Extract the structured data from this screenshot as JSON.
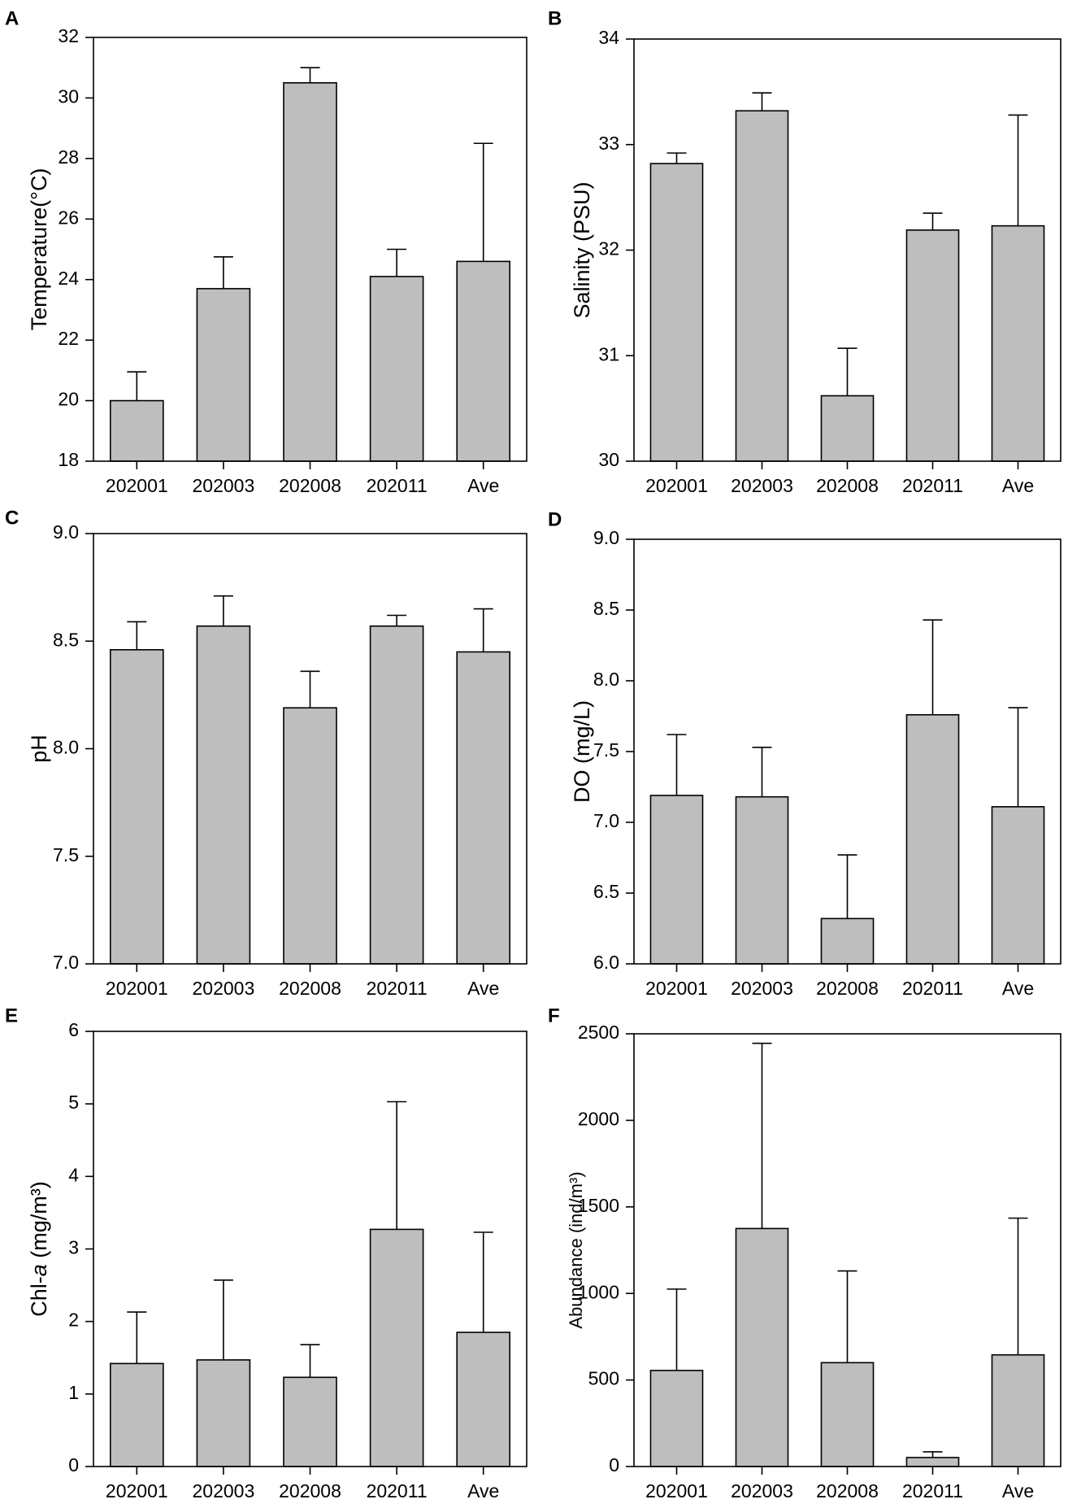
{
  "chart_data": [
    {
      "panel": "A",
      "type": "bar",
      "categories": [
        "202001",
        "202003",
        "202008",
        "202011",
        "Ave"
      ],
      "values": [
        20.0,
        23.7,
        30.5,
        24.1,
        24.6
      ],
      "errors": [
        0.95,
        1.05,
        0.5,
        0.9,
        3.9
      ],
      "ylabel": "Temperature(°C)",
      "ylim": [
        18,
        32
      ],
      "yticks": [
        "18",
        "20",
        "22",
        "24",
        "26",
        "28",
        "30",
        "32"
      ],
      "ytick_values": [
        18,
        20,
        22,
        24,
        26,
        28,
        30,
        32
      ]
    },
    {
      "panel": "B",
      "type": "bar",
      "categories": [
        "202001",
        "202003",
        "202008",
        "202011",
        "Ave"
      ],
      "values": [
        32.82,
        33.32,
        30.62,
        32.19,
        32.23
      ],
      "errors": [
        0.1,
        0.17,
        0.45,
        0.16,
        1.05
      ],
      "ylabel": "Salinity (PSU)",
      "ylim": [
        30,
        34
      ],
      "yticks": [
        "30",
        "31",
        "32",
        "33",
        "34"
      ],
      "ytick_values": [
        30,
        31,
        32,
        33,
        34
      ]
    },
    {
      "panel": "C",
      "type": "bar",
      "categories": [
        "202001",
        "202003",
        "202008",
        "202011",
        "Ave"
      ],
      "values": [
        8.46,
        8.57,
        8.19,
        8.57,
        8.45
      ],
      "errors": [
        0.13,
        0.14,
        0.17,
        0.05,
        0.2
      ],
      "ylabel": "pH",
      "ylim": [
        7.0,
        9.0
      ],
      "yticks": [
        "7.0",
        "7.5",
        "8.0",
        "8.5",
        "9.0"
      ],
      "ytick_values": [
        7.0,
        7.5,
        8.0,
        8.5,
        9.0
      ]
    },
    {
      "panel": "D",
      "type": "bar",
      "categories": [
        "202001",
        "202003",
        "202008",
        "202011",
        "Ave"
      ],
      "values": [
        7.19,
        7.18,
        6.32,
        7.76,
        7.11
      ],
      "errors": [
        0.43,
        0.35,
        0.45,
        0.67,
        0.7
      ],
      "ylabel": "DO (mg/L)",
      "ylim": [
        6.0,
        9.0
      ],
      "yticks": [
        "6.0",
        "6.5",
        "7.0",
        "7.5",
        "8.0",
        "8.5",
        "9.0"
      ],
      "ytick_values": [
        6.0,
        6.5,
        7.0,
        7.5,
        8.0,
        8.5,
        9.0
      ]
    },
    {
      "panel": "E",
      "type": "bar",
      "categories": [
        "202001",
        "202003",
        "202008",
        "202011",
        "Ave"
      ],
      "values": [
        1.42,
        1.47,
        1.23,
        3.27,
        1.85
      ],
      "errors": [
        0.71,
        1.1,
        0.45,
        1.76,
        1.38
      ],
      "ylabel": "Chl-a (mg/m³)",
      "ylim": [
        0,
        6
      ],
      "yticks": [
        "0",
        "1",
        "2",
        "3",
        "4",
        "5",
        "6"
      ],
      "ytick_values": [
        0,
        1,
        2,
        3,
        4,
        5,
        6
      ]
    },
    {
      "panel": "F",
      "type": "bar",
      "categories": [
        "202001",
        "202003",
        "202008",
        "202011",
        "Ave"
      ],
      "values": [
        555,
        1375,
        600,
        52,
        645
      ],
      "errors": [
        470,
        1070,
        530,
        33,
        790
      ],
      "ylabel": "Abundance (ind/m³)",
      "ylim": [
        0,
        2500
      ],
      "yticks": [
        "0",
        "500",
        "1000",
        "1500",
        "2000",
        "2500"
      ],
      "ytick_values": [
        0,
        500,
        1000,
        1500,
        2000,
        2500
      ]
    }
  ]
}
